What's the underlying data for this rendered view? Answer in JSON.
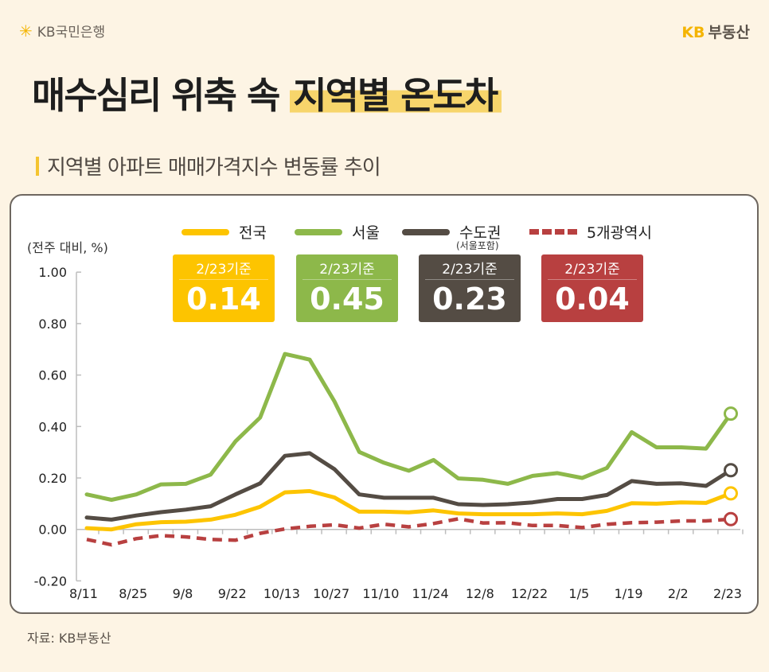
{
  "header": {
    "bank_logo": "KB국민은행",
    "brand_logo": "KB부동산",
    "brand_prefix": "KB",
    "brand_name": "부동산"
  },
  "title": {
    "plain": "매수심리 위축 속",
    "highlight": "지역별 온도차"
  },
  "subtitle": "지역별 아파트 매매가격지수 변동률 추이",
  "legend": [
    {
      "label": "전국",
      "color": "#fdc400",
      "style": "solid"
    },
    {
      "label": "서울",
      "color": "#8db84a",
      "style": "solid"
    },
    {
      "label": "수도권",
      "sub": "(서울포함)",
      "color": "#544c44",
      "style": "solid"
    },
    {
      "label": "5개광역시",
      "color": "#b84040",
      "style": "dashed"
    }
  ],
  "cards": [
    {
      "label": "2/23기준",
      "value": "0.14",
      "color": "#fdc400"
    },
    {
      "label": "2/23기준",
      "value": "0.45",
      "color": "#8db84a"
    },
    {
      "label": "2/23기준",
      "value": "0.23",
      "color": "#544c44"
    },
    {
      "label": "2/23기준",
      "value": "0.04",
      "color": "#b84040"
    }
  ],
  "source": "자료: KB부동산",
  "chart_data": {
    "type": "line",
    "ylabel": "(전주 대비, %)",
    "ylim": [
      -0.2,
      1.0
    ],
    "yticks": [
      "1.00",
      "0.80",
      "0.60",
      "0.40",
      "0.20",
      "0.00",
      "-0.20"
    ],
    "ytick_values": [
      1.0,
      0.8,
      0.6,
      0.4,
      0.2,
      0.0,
      -0.2
    ],
    "x": [
      "8/11",
      "8/18",
      "8/25",
      "9/1",
      "9/8",
      "9/15",
      "9/22",
      "9/29",
      "10/13",
      "10/20",
      "10/27",
      "11/3",
      "11/10",
      "11/17",
      "11/24",
      "12/1",
      "12/8",
      "12/15",
      "12/22",
      "12/29",
      "1/5",
      "1/12",
      "1/19",
      "1/26",
      "2/2",
      "2/9",
      "2/23"
    ],
    "xtick_labels": [
      "8/11",
      "8/25",
      "9/8",
      "9/22",
      "10/13",
      "10/27",
      "11/10",
      "11/24",
      "12/8",
      "12/22",
      "1/5",
      "1/19",
      "2/2",
      "2/23"
    ],
    "grid": false,
    "legend_position": "top",
    "series": [
      {
        "name": "전국",
        "color": "#fdc400",
        "dashed": false,
        "values": [
          0.005,
          0.0,
          0.02,
          0.028,
          0.03,
          0.038,
          0.057,
          0.088,
          0.144,
          0.149,
          0.124,
          0.069,
          0.069,
          0.066,
          0.074,
          0.062,
          0.059,
          0.059,
          0.059,
          0.062,
          0.059,
          0.072,
          0.102,
          0.1,
          0.105,
          0.103,
          0.14
        ]
      },
      {
        "name": "서울",
        "color": "#8db84a",
        "dashed": false,
        "values": [
          0.136,
          0.115,
          0.136,
          0.175,
          0.177,
          0.213,
          0.342,
          0.435,
          0.682,
          0.66,
          0.497,
          0.301,
          0.259,
          0.228,
          0.27,
          0.198,
          0.193,
          0.177,
          0.208,
          0.219,
          0.2,
          0.239,
          0.378,
          0.319,
          0.319,
          0.314,
          0.45
        ]
      },
      {
        "name": "수도권",
        "color": "#544c44",
        "dashed": false,
        "values": [
          0.046,
          0.038,
          0.054,
          0.067,
          0.077,
          0.09,
          0.136,
          0.179,
          0.286,
          0.296,
          0.234,
          0.136,
          0.123,
          0.123,
          0.123,
          0.098,
          0.095,
          0.098,
          0.105,
          0.118,
          0.118,
          0.134,
          0.188,
          0.177,
          0.179,
          0.169,
          0.23
        ]
      },
      {
        "name": "5개광역시",
        "color": "#b84040",
        "dashed": true,
        "values": [
          -0.039,
          -0.06,
          -0.036,
          -0.024,
          -0.029,
          -0.039,
          -0.042,
          -0.015,
          0.002,
          0.012,
          0.018,
          0.005,
          0.02,
          0.01,
          0.023,
          0.041,
          0.025,
          0.026,
          0.015,
          0.015,
          0.007,
          0.02,
          0.026,
          0.028,
          0.033,
          0.033,
          0.04
        ]
      }
    ]
  }
}
